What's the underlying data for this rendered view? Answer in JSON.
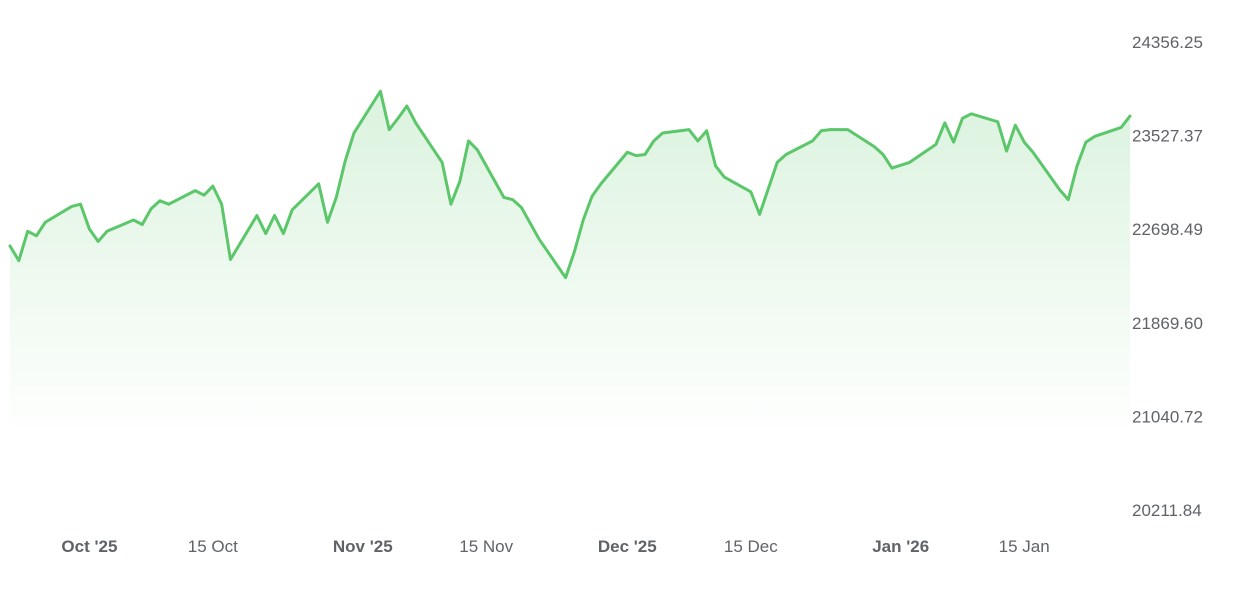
{
  "chart_data": {
    "type": "area",
    "title": "",
    "xlabel": "",
    "ylabel": "",
    "x_range": [
      "2025-09-22",
      "2026-01-22"
    ],
    "ylim": [
      20211.84,
      24356.25
    ],
    "y_ticks": [
      "24356.25",
      "23527.37",
      "22698.49",
      "21869.60",
      "21040.72",
      "20211.84"
    ],
    "x_ticks": [
      {
        "date": "2025-10-01",
        "label": "Oct '25",
        "major": true
      },
      {
        "date": "2025-10-15",
        "label": "15 Oct",
        "major": false
      },
      {
        "date": "2025-11-01",
        "label": "Nov '25",
        "major": true
      },
      {
        "date": "2025-11-15",
        "label": "15 Nov",
        "major": false
      },
      {
        "date": "2025-12-01",
        "label": "Dec '25",
        "major": true
      },
      {
        "date": "2025-12-15",
        "label": "15 Dec",
        "major": false
      },
      {
        "date": "2026-01-01",
        "label": "Jan '26",
        "major": true
      },
      {
        "date": "2026-01-15",
        "label": "15 Jan",
        "major": false
      }
    ],
    "grid": false,
    "legend": "none",
    "line_color": "#5bc76a",
    "fill_color": "#5bc76a",
    "series": [
      {
        "points": [
          [
            "2025-09-22",
            22550
          ],
          [
            "2025-09-23",
            22420
          ],
          [
            "2025-09-24",
            22680
          ],
          [
            "2025-09-25",
            22640
          ],
          [
            "2025-09-26",
            22760
          ],
          [
            "2025-09-29",
            22900
          ],
          [
            "2025-09-30",
            22920
          ],
          [
            "2025-10-01",
            22700
          ],
          [
            "2025-10-02",
            22590
          ],
          [
            "2025-10-03",
            22680
          ],
          [
            "2025-10-06",
            22780
          ],
          [
            "2025-10-07",
            22740
          ],
          [
            "2025-10-08",
            22880
          ],
          [
            "2025-10-09",
            22950
          ],
          [
            "2025-10-10",
            22920
          ],
          [
            "2025-10-13",
            23040
          ],
          [
            "2025-10-14",
            23000
          ],
          [
            "2025-10-15",
            23080
          ],
          [
            "2025-10-16",
            22920
          ],
          [
            "2025-10-17",
            22430
          ],
          [
            "2025-10-20",
            22820
          ],
          [
            "2025-10-21",
            22660
          ],
          [
            "2025-10-22",
            22820
          ],
          [
            "2025-10-23",
            22660
          ],
          [
            "2025-10-24",
            22870
          ],
          [
            "2025-10-27",
            23100
          ],
          [
            "2025-10-28",
            22760
          ],
          [
            "2025-10-29",
            22980
          ],
          [
            "2025-10-30",
            23300
          ],
          [
            "2025-10-31",
            23550
          ],
          [
            "2025-11-03",
            23920
          ],
          [
            "2025-11-04",
            23580
          ],
          [
            "2025-11-05",
            23680
          ],
          [
            "2025-11-06",
            23790
          ],
          [
            "2025-11-07",
            23640
          ],
          [
            "2025-11-10",
            23290
          ],
          [
            "2025-11-11",
            22920
          ],
          [
            "2025-11-12",
            23120
          ],
          [
            "2025-11-13",
            23480
          ],
          [
            "2025-11-14",
            23400
          ],
          [
            "2025-11-17",
            22980
          ],
          [
            "2025-11-18",
            22960
          ],
          [
            "2025-11-19",
            22890
          ],
          [
            "2025-11-20",
            22750
          ],
          [
            "2025-11-21",
            22610
          ],
          [
            "2025-11-24",
            22270
          ],
          [
            "2025-11-25",
            22500
          ],
          [
            "2025-11-26",
            22780
          ],
          [
            "2025-11-27",
            22990
          ],
          [
            "2025-11-28",
            23100
          ],
          [
            "2025-12-01",
            23380
          ],
          [
            "2025-12-02",
            23350
          ],
          [
            "2025-12-03",
            23360
          ],
          [
            "2025-12-04",
            23480
          ],
          [
            "2025-12-05",
            23550
          ],
          [
            "2025-12-08",
            23580
          ],
          [
            "2025-12-09",
            23480
          ],
          [
            "2025-12-10",
            23570
          ],
          [
            "2025-12-11",
            23260
          ],
          [
            "2025-12-12",
            23160
          ],
          [
            "2025-12-15",
            23030
          ],
          [
            "2025-12-16",
            22830
          ],
          [
            "2025-12-17",
            23060
          ],
          [
            "2025-12-18",
            23290
          ],
          [
            "2025-12-19",
            23360
          ],
          [
            "2025-12-22",
            23480
          ],
          [
            "2025-12-23",
            23570
          ],
          [
            "2025-12-24",
            23580
          ],
          [
            "2025-12-26",
            23580
          ],
          [
            "2025-12-29",
            23430
          ],
          [
            "2025-12-30",
            23360
          ],
          [
            "2025-12-31",
            23240
          ],
          [
            "2026-01-02",
            23290
          ],
          [
            "2026-01-05",
            23450
          ],
          [
            "2026-01-06",
            23640
          ],
          [
            "2026-01-07",
            23470
          ],
          [
            "2026-01-08",
            23680
          ],
          [
            "2026-01-09",
            23720
          ],
          [
            "2026-01-12",
            23650
          ],
          [
            "2026-01-13",
            23390
          ],
          [
            "2026-01-14",
            23620
          ],
          [
            "2026-01-15",
            23470
          ],
          [
            "2026-01-16",
            23380
          ],
          [
            "2026-01-19",
            23050
          ],
          [
            "2026-01-20",
            22960
          ],
          [
            "2026-01-21",
            23260
          ],
          [
            "2026-01-22",
            23470
          ],
          [
            "2026-01-23",
            23520
          ],
          [
            "2026-01-26",
            23600
          ],
          [
            "2026-01-27",
            23700
          ]
        ]
      }
    ]
  }
}
